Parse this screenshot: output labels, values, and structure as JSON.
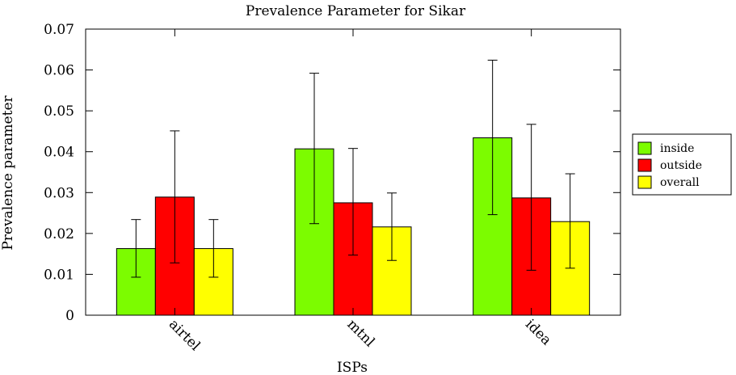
{
  "chart_data": {
    "type": "bar",
    "title": "Prevalence Parameter for Sikar",
    "xlabel": "ISPs",
    "ylabel": "Prevalence parameter",
    "categories": [
      "airtel",
      "mtnl",
      "idea"
    ],
    "series": [
      {
        "name": "inside",
        "color": "#7cfc00",
        "values": [
          0.0163,
          0.0407,
          0.0434
        ],
        "err_low": [
          0.0093,
          0.0224,
          0.0246
        ],
        "err_high": [
          0.0234,
          0.0592,
          0.0624
        ]
      },
      {
        "name": "outside",
        "color": "#ff0000",
        "values": [
          0.0289,
          0.0275,
          0.0287
        ],
        "err_low": [
          0.0128,
          0.0147,
          0.011
        ],
        "err_high": [
          0.0451,
          0.0408,
          0.0467
        ]
      },
      {
        "name": "overall",
        "color": "#ffff00",
        "values": [
          0.0163,
          0.0216,
          0.0229
        ],
        "err_low": [
          0.0093,
          0.0134,
          0.0115
        ],
        "err_high": [
          0.0234,
          0.0299,
          0.0346
        ]
      }
    ],
    "ylim": [
      0,
      0.07
    ],
    "yticks": [
      "0",
      "0.01",
      "0.02",
      "0.03",
      "0.04",
      "0.05",
      "0.06",
      "0.07"
    ],
    "grid": false,
    "legend_position": "right"
  }
}
